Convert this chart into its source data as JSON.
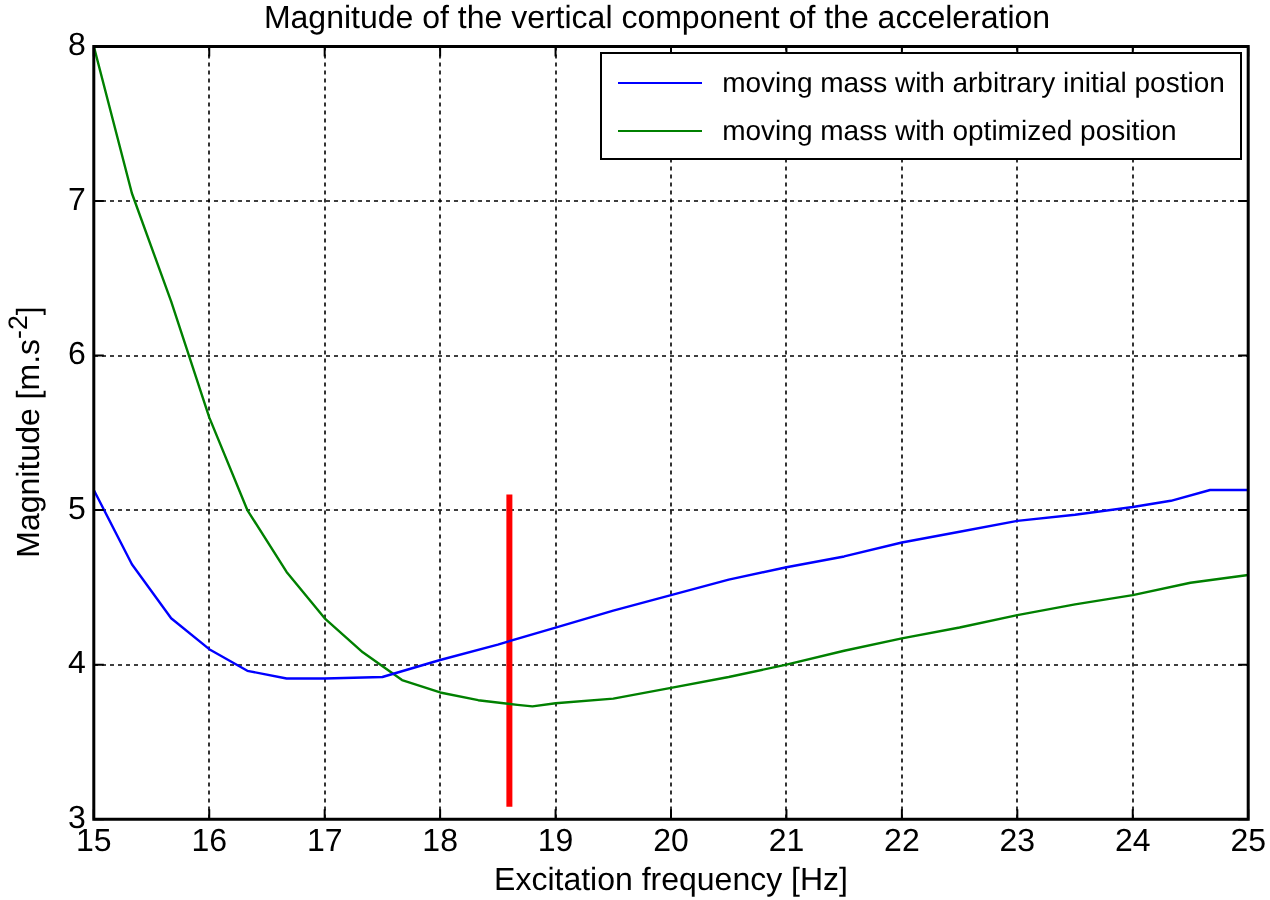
{
  "chart_data": {
    "type": "line",
    "title": "Magnitude of the vertical component of the acceleration",
    "xlabel": "Excitation frequency [Hz]",
    "ylabel": "Magnitude [m.s$^{-2}$]",
    "xlim": [
      15,
      25
    ],
    "xticks": [
      15,
      16,
      17,
      18,
      19,
      20,
      21,
      22,
      23,
      24,
      25
    ],
    "ylim": [
      3,
      8
    ],
    "yticks": [
      3,
      4,
      5,
      6,
      7,
      8
    ],
    "grid": true,
    "legend": "top right",
    "marker": "none",
    "line_style": "solid",
    "series": [
      {
        "name": "moving mass with arbitrary initial postion",
        "color": "#0000ff",
        "x": [
          15,
          15.33,
          15.67,
          16,
          16.33,
          16.67,
          17,
          17.5,
          18,
          18.5,
          19,
          19.5,
          20,
          20.5,
          21,
          21.5,
          22,
          22.5,
          23,
          23.5,
          24,
          24.33,
          24.67,
          25
        ],
        "values": [
          5.13,
          4.65,
          4.3,
          4.1,
          3.96,
          3.91,
          3.91,
          3.92,
          4.03,
          4.13,
          4.24,
          4.35,
          4.45,
          4.55,
          4.63,
          4.7,
          4.79,
          4.86,
          4.93,
          4.97,
          5.02,
          5.06,
          5.13,
          5.13
        ]
      },
      {
        "name": "moving mass with optimized position",
        "color": "#008000",
        "x": [
          15,
          15.33,
          15.67,
          16,
          16.33,
          16.67,
          17,
          17.33,
          17.67,
          18,
          18.33,
          18.67,
          18.8,
          19,
          19.5,
          20,
          20.5,
          21,
          21.5,
          22,
          22.5,
          23,
          23.5,
          24,
          24.5,
          25
        ],
        "values": [
          8.0,
          7.05,
          6.35,
          5.6,
          5.0,
          4.6,
          4.3,
          4.08,
          3.9,
          3.82,
          3.77,
          3.74,
          3.73,
          3.75,
          3.78,
          3.85,
          3.92,
          4.0,
          4.09,
          4.17,
          4.24,
          4.32,
          4.39,
          4.45,
          4.53,
          4.58
        ]
      },
      {
        "color": "#ff0000",
        "x": [
          18.6,
          18.6
        ],
        "values": [
          3.08,
          5.1
        ]
      }
    ]
  }
}
